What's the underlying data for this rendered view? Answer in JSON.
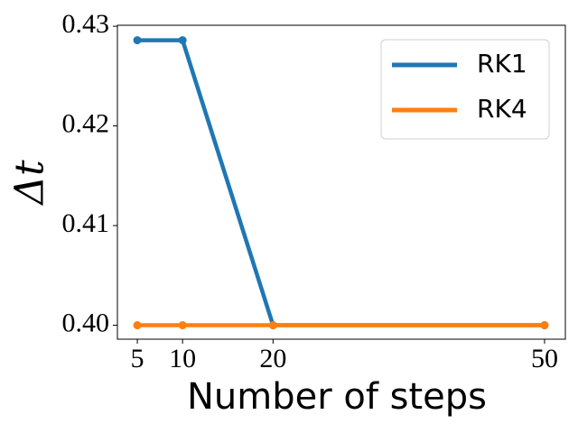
{
  "chart_data": {
    "type": "line",
    "xlabel": "Number of steps",
    "ylabel": "Δt",
    "x": [
      5,
      10,
      20,
      50
    ],
    "series": [
      {
        "name": "RK1",
        "color": "#1f77b4",
        "values": [
          0.4286,
          0.4286,
          0.4,
          0.4
        ]
      },
      {
        "name": "RK4",
        "color": "#ff7f0e",
        "values": [
          0.4,
          0.4,
          0.4,
          0.4
        ]
      }
    ],
    "xlim": [
      2.8,
      52.3
    ],
    "xticks": [
      5,
      10,
      20,
      50
    ],
    "ylim": [
      0.3986,
      0.4301
    ],
    "yticks": [
      {
        "value": 0.4,
        "label": "0.40"
      },
      0.41,
      0.42,
      0.43
    ],
    "legend": "upper right",
    "grid": false
  }
}
